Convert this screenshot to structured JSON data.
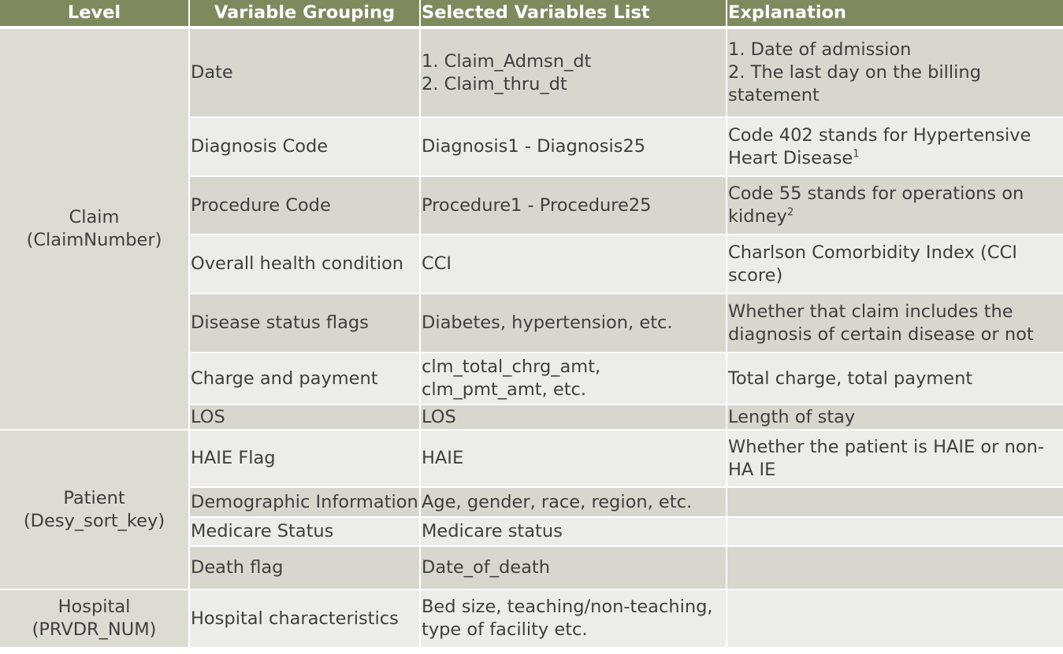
{
  "headers": {
    "level": "Level",
    "grouping": "Variable Grouping",
    "variables": "Selected Variables List",
    "explanation": "Explanation"
  },
  "groups": [
    {
      "level_name": "Claim",
      "level_key": "(ClaimNumber)",
      "rows": [
        {
          "grouping": "Date",
          "variables": [
            "1. Claim_Admsn_dt",
            "2. Claim_thru_dt"
          ],
          "explanation": [
            "1. Date of admission",
            "2. The last day on the billing",
            "statement"
          ]
        },
        {
          "grouping": "Diagnosis Code",
          "variables": [
            "Diagnosis1 - Diagnosis25"
          ],
          "explanation": [
            "Code 402 stands for Hypertensive",
            "Heart Disease"
          ],
          "footnote": "1"
        },
        {
          "grouping": "Procedure Code",
          "variables": [
            "Procedure1 - Procedure25"
          ],
          "explanation": [
            "Code 55 stands for operations on",
            "kidney"
          ],
          "footnote": "2"
        },
        {
          "grouping": "Overall health condition",
          "variables": [
            "CCI"
          ],
          "explanation": [
            "Charlson Comorbidity Index (CCI",
            "score)"
          ]
        },
        {
          "grouping": "Disease status flags",
          "variables": [
            "Diabetes, hypertension, etc."
          ],
          "explanation": [
            "Whether that claim includes the",
            "diagnosis of certain disease or not"
          ]
        },
        {
          "grouping": "Charge and payment",
          "variables": [
            "clm_total_chrg_amt,",
            "clm_pmt_amt, etc."
          ],
          "explanation": [
            "Total charge, total payment"
          ]
        },
        {
          "grouping": "LOS",
          "variables": [
            "LOS"
          ],
          "explanation": [
            "Length of stay"
          ]
        }
      ]
    },
    {
      "level_name": "Patient",
      "level_key": "(Desy_sort_key)",
      "rows": [
        {
          "grouping": "HAIE Flag",
          "variables": [
            "HAIE"
          ],
          "explanation": [
            "Whether the patient is HAIE or non-",
            "HA IE"
          ]
        },
        {
          "grouping": "Demographic Information",
          "variables": [
            "Age, gender, race, region, etc."
          ],
          "explanation": []
        },
        {
          "grouping": "Medicare Status",
          "variables": [
            "Medicare status"
          ],
          "explanation": []
        },
        {
          "grouping": "Death flag",
          "variables": [
            "Date_of_death"
          ],
          "explanation": []
        }
      ]
    },
    {
      "level_name": "Hospital",
      "level_key": "(PRVDR_NUM)",
      "rows": [
        {
          "grouping": "Hospital characteristics",
          "variables": [
            "Bed size, teaching/non-teaching,",
            "type of facility etc."
          ],
          "explanation": []
        }
      ]
    }
  ],
  "colors": {
    "header_bg": "#7e8a5e",
    "row_dark": "#d7d7cf",
    "row_light": "#ececea",
    "level_bg": "#dcdcd4",
    "text": "#3f3f3f"
  }
}
